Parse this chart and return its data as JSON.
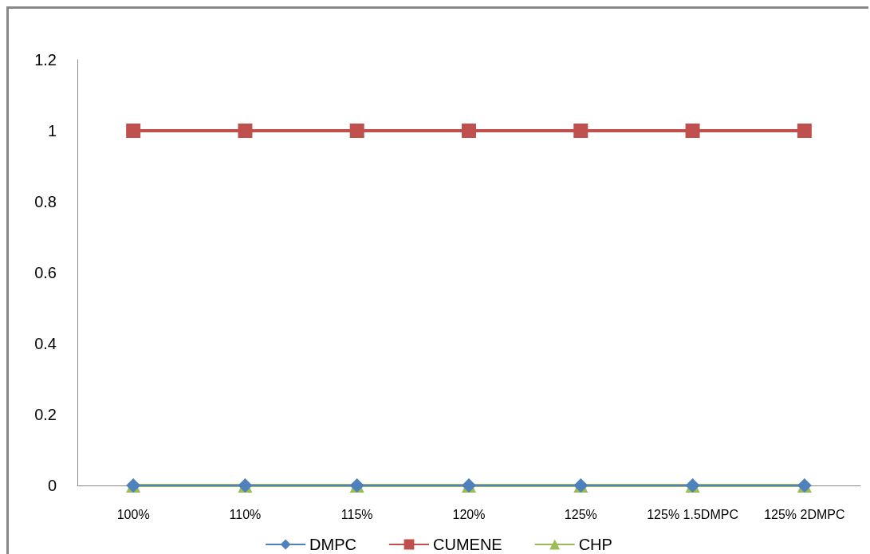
{
  "chart_data": {
    "type": "line",
    "categories": [
      "100%",
      "110%",
      "115%",
      "120%",
      "125%",
      "125% 1.5DMPC",
      "125% 2DMPC"
    ],
    "series": [
      {
        "name": "DMPC",
        "color": "#4f81bd",
        "marker": "diamond",
        "values": [
          0,
          0,
          0,
          0,
          0,
          0,
          0
        ]
      },
      {
        "name": "CUMENE",
        "color": "#c0504d",
        "marker": "square",
        "values": [
          1,
          1,
          1,
          1,
          1,
          1,
          1
        ]
      },
      {
        "name": "CHP",
        "color": "#9bbb59",
        "marker": "triangle",
        "values": [
          0,
          0,
          0,
          0,
          0,
          0,
          0
        ]
      }
    ],
    "ylim": [
      0,
      1.2
    ],
    "yticks": [
      0,
      0.2,
      0.4,
      0.6,
      0.8,
      1,
      1.2
    ],
    "grid": false,
    "legend": "bottom"
  }
}
